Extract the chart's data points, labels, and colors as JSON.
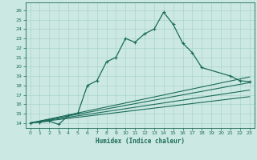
{
  "title": "",
  "xlabel": "Humidex (Indice chaleur)",
  "ylabel": "",
  "bg_color": "#cce8e2",
  "grid_color": "#aad4cc",
  "line_color": "#1a6b5a",
  "xlim": [
    -0.5,
    23.5
  ],
  "ylim": [
    13.5,
    26.8
  ],
  "xticks": [
    0,
    1,
    2,
    3,
    4,
    5,
    6,
    7,
    8,
    9,
    10,
    11,
    12,
    13,
    14,
    15,
    16,
    17,
    18,
    19,
    20,
    21,
    22,
    23
  ],
  "yticks": [
    14,
    15,
    16,
    17,
    18,
    19,
    20,
    21,
    22,
    23,
    24,
    25,
    26
  ],
  "main_series": {
    "x": [
      0,
      1,
      2,
      3,
      4,
      5,
      6,
      7,
      8,
      9,
      10,
      11,
      12,
      13,
      14,
      15,
      16,
      17,
      18,
      21,
      22,
      23
    ],
    "y": [
      14.0,
      14.1,
      14.2,
      13.85,
      14.8,
      15.05,
      18.0,
      18.5,
      20.5,
      21.0,
      23.0,
      22.6,
      23.5,
      24.0,
      25.8,
      24.5,
      22.5,
      21.5,
      19.9,
      19.0,
      18.5,
      18.4
    ]
  },
  "linear_lines": [
    {
      "x0": 0,
      "y0": 14.0,
      "x1": 23,
      "y1": 18.3
    },
    {
      "x0": 0,
      "y0": 14.0,
      "x1": 23,
      "y1": 17.5
    },
    {
      "x0": 0,
      "y0": 14.0,
      "x1": 23,
      "y1": 16.8
    },
    {
      "x0": 0,
      "y0": 14.0,
      "x1": 23,
      "y1": 18.9
    }
  ]
}
